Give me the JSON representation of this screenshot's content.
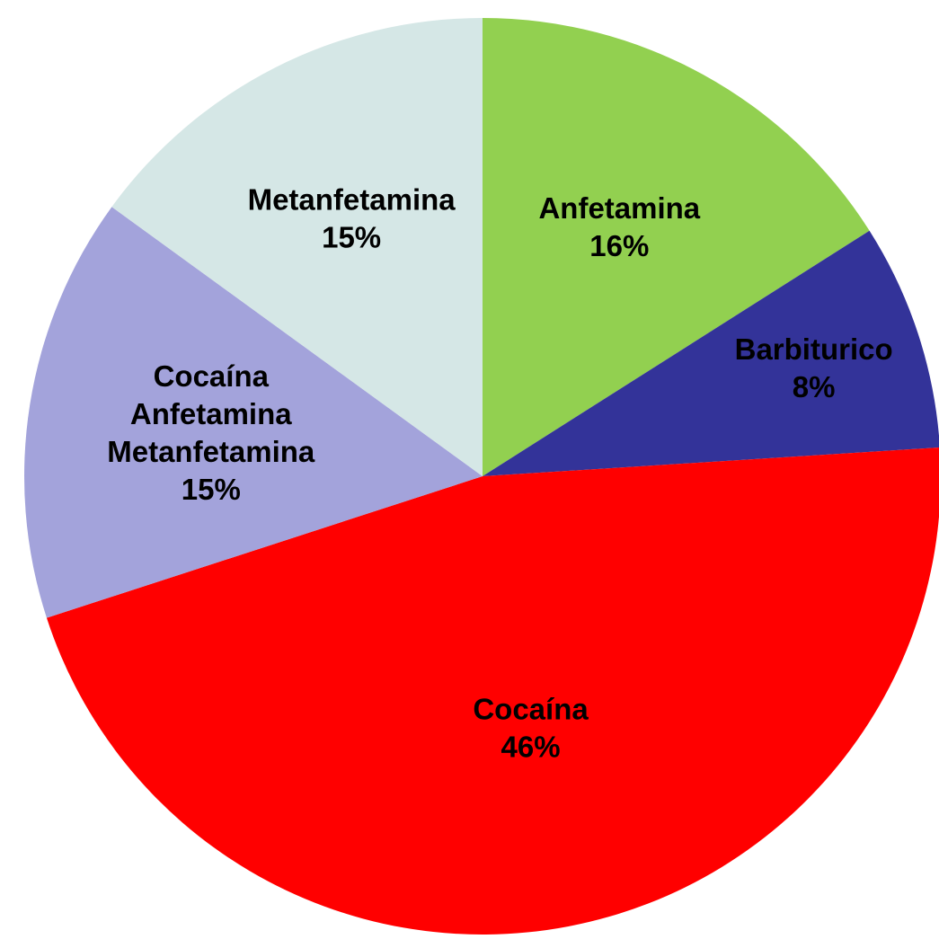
{
  "chart_data": {
    "type": "pie",
    "slices": [
      {
        "label": [
          "Anfetamina"
        ],
        "value": 16,
        "value_label": "16%",
        "color": "#92D050"
      },
      {
        "label": [
          "Barbiturico"
        ],
        "value": 8,
        "value_label": "8%",
        "color": "#333399"
      },
      {
        "label": [
          "Cocaína"
        ],
        "value": 46,
        "value_label": "46%",
        "color": "#FF0000"
      },
      {
        "label": [
          "Cocaína",
          "Anfetamina",
          "Metanfetamina"
        ],
        "value": 15,
        "value_label": "15%",
        "color": "#A3A3DB"
      },
      {
        "label": [
          "Metanfetamina"
        ],
        "value": 15,
        "value_label": "15%",
        "color": "#D5E7E6"
      }
    ],
    "start_angle_deg": 0,
    "direction": "clockwise",
    "legend": "none"
  }
}
